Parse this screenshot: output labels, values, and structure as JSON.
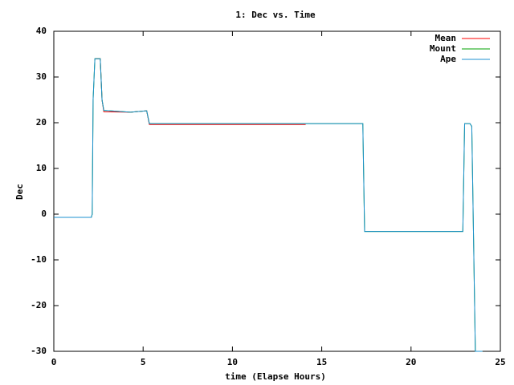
{
  "chart_data": {
    "type": "line",
    "title": "1: Dec vs. Time",
    "x_label": "time (Elapse Hours)",
    "y_label": "Dec",
    "x": [
      0,
      2.1,
      2.15,
      2.2,
      2.3,
      2.6,
      2.7,
      2.8,
      4.3,
      5.2,
      5.35,
      14.1,
      17.3,
      17.4,
      22.9,
      23.0,
      23.3,
      23.4,
      23.6,
      24.0
    ],
    "series": [
      {
        "name": "Mean",
        "color": "#ff0000",
        "values": [
          null,
          null,
          null,
          null,
          34,
          34,
          25,
          22.4,
          22.3,
          22.6,
          19.6,
          19.6,
          null,
          null,
          null,
          null,
          null,
          null,
          -30,
          -30
        ]
      },
      {
        "name": "Mount",
        "color": "#00a000",
        "values": [
          -0.7,
          -0.7,
          0,
          25,
          34,
          34,
          25,
          22.7,
          22.3,
          22.6,
          19.8,
          19.8,
          19.8,
          -3.8,
          -3.8,
          19.8,
          19.8,
          19.2,
          -30,
          -30
        ]
      },
      {
        "name": "Ape",
        "color": "#1e90d0",
        "values": [
          -0.7,
          -0.7,
          0,
          25,
          34,
          34,
          25,
          22.7,
          22.3,
          22.6,
          19.8,
          19.8,
          19.8,
          -3.8,
          -3.8,
          19.8,
          19.8,
          19.2,
          -30,
          -30
        ]
      }
    ],
    "xlim": [
      0,
      25
    ],
    "xticks": [
      0,
      5,
      10,
      15,
      20,
      25
    ],
    "ylim": [
      -30,
      40
    ],
    "yticks": [
      -30,
      -20,
      -10,
      0,
      10,
      20,
      30,
      40
    ],
    "legend": "upper-right"
  }
}
